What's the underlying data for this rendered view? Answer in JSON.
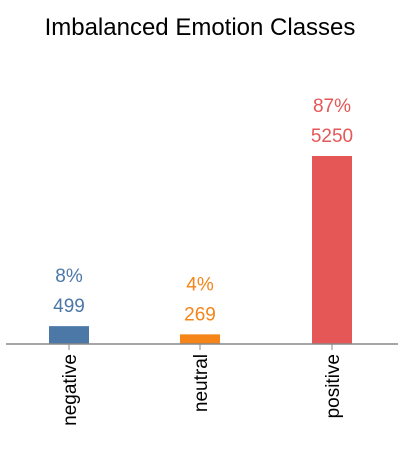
{
  "chart_data": {
    "type": "bar",
    "title": "Imbalanced Emotion Classes",
    "categories": [
      "negative",
      "neutral",
      "positive"
    ],
    "values": [
      499,
      269,
      5250
    ],
    "percent_labels": [
      "8%",
      "4%",
      "87%"
    ],
    "count_labels": [
      "499",
      "269",
      "5250"
    ],
    "colors": [
      "#4c78a8",
      "#f58518",
      "#e45756"
    ],
    "axis_color": "#888888",
    "xlabel": "",
    "ylabel": "",
    "ylim": [
      0,
      5250
    ],
    "grid": false,
    "legend": "none"
  }
}
